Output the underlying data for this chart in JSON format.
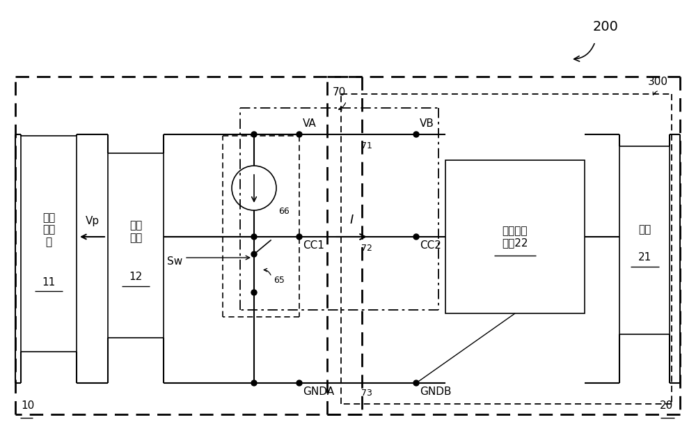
{
  "fig_width": 10.0,
  "fig_height": 6.39,
  "bg_color": "#ffffff",
  "label_200": "200",
  "label_10": "10",
  "label_20": "20",
  "label_300": "300",
  "label_70": "70",
  "label_71": "71",
  "label_72": "72",
  "label_73": "73",
  "label_66": "66",
  "label_65": "65",
  "label_VA": "VA",
  "label_VB": "VB",
  "label_CC1": "CC1",
  "label_CC2": "CC2",
  "label_GNDA": "GNDA",
  "label_GNDB": "GNDB",
  "label_I": "I",
  "label_Vp": "Vp",
  "label_Sw": "Sw",
  "label_box11_line1": "电源",
  "label_box11_line2": "转换器",
  "label_box11_num": "11",
  "label_box12_line1": "控制",
  "label_box12_line2": "电路",
  "label_box12_num": "12",
  "label_box22_line1": "时变阔抗",
  "label_box22_line2": "电路22",
  "label_box21_line1": "负载",
  "label_box21_num": "21"
}
